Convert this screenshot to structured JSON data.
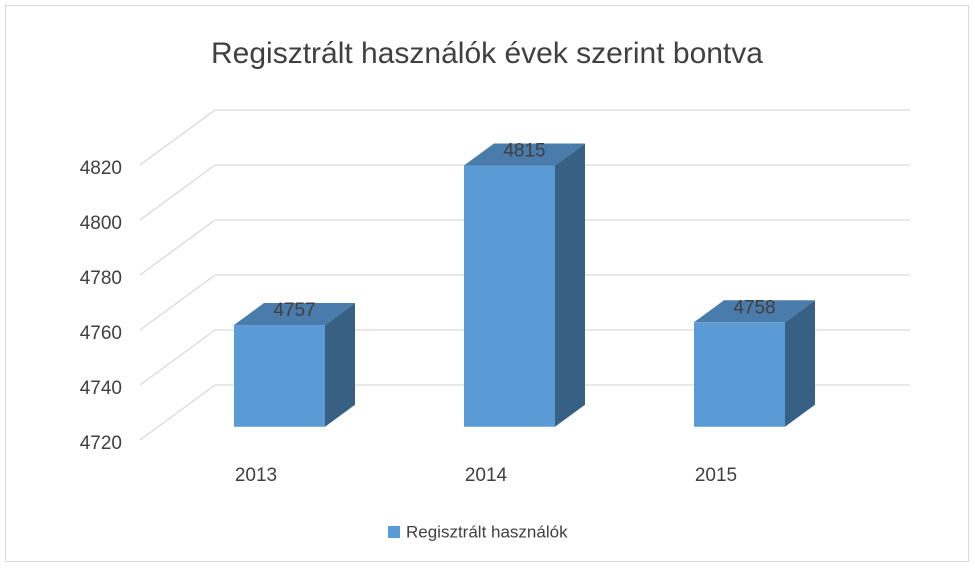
{
  "chart_data": {
    "type": "bar3d",
    "title": "Regisztrált használók évek szerint bontva",
    "categories": [
      "2013",
      "2014",
      "2015"
    ],
    "series": [
      {
        "name": "Regisztrált használók",
        "color": "#5b9bd5",
        "values": [
          4757,
          4815,
          4758
        ]
      }
    ],
    "ylim": [
      4720,
      4820
    ],
    "yticks": [
      4720,
      4740,
      4760,
      4780,
      4800,
      4820
    ],
    "grid": true,
    "legend": "bottom"
  }
}
